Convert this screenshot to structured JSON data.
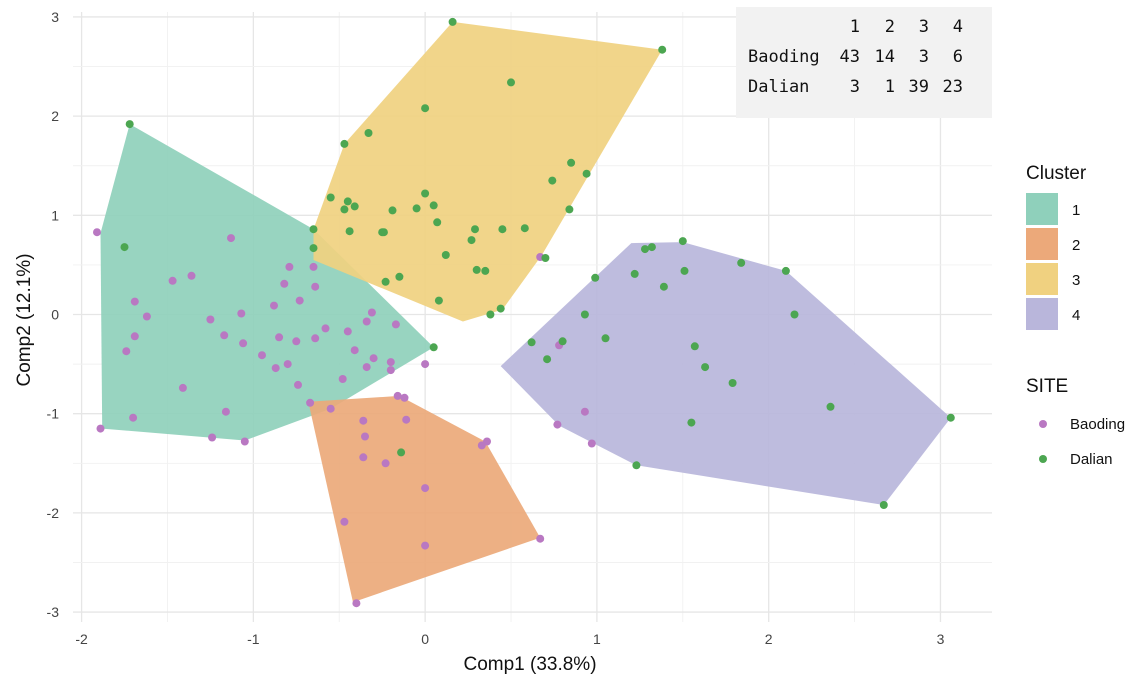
{
  "chart_data": {
    "type": "scatter",
    "xlabel": "Comp1 (33.8%)",
    "ylabel": "Comp2 (12.1%)",
    "xlim": [
      -2.05,
      3.3
    ],
    "ylim": [
      -3.1,
      3.05
    ],
    "x_ticks": [
      -2,
      -1,
      0,
      1,
      2,
      3
    ],
    "y_ticks": [
      -3,
      -2,
      -1,
      0,
      1,
      2,
      3
    ],
    "grid": true,
    "legend_position": "right",
    "cluster_legend": {
      "title": "Cluster",
      "entries": [
        {
          "label": "1",
          "color": "#8fd0bb"
        },
        {
          "label": "2",
          "color": "#eca97a"
        },
        {
          "label": "3",
          "color": "#f0d180"
        },
        {
          "label": "4",
          "color": "#b9b6db"
        }
      ]
    },
    "site_legend": {
      "title": "SITE",
      "entries": [
        {
          "label": "Baoding",
          "color": "#b978c2"
        },
        {
          "label": "Dalian",
          "color": "#4ca651"
        }
      ]
    },
    "hulls": [
      {
        "cluster": "1",
        "points": [
          [
            -1.72,
            1.92
          ],
          [
            -1.89,
            0.82
          ],
          [
            -1.88,
            -1.15
          ],
          [
            -1.05,
            -1.27
          ],
          [
            -0.55,
            -0.95
          ],
          [
            0.05,
            -0.33
          ],
          [
            -0.65,
            0.86
          ]
        ]
      },
      {
        "cluster": "2",
        "points": [
          [
            -0.68,
            -0.88
          ],
          [
            -0.42,
            -2.9
          ],
          [
            0.67,
            -2.25
          ],
          [
            0.35,
            -1.28
          ],
          [
            -0.15,
            -0.82
          ]
        ]
      },
      {
        "cluster": "3",
        "points": [
          [
            -0.65,
            0.86
          ],
          [
            -0.47,
            1.72
          ],
          [
            0.16,
            2.95
          ],
          [
            1.38,
            2.67
          ],
          [
            0.68,
            0.6
          ],
          [
            0.45,
            0.05
          ],
          [
            0.22,
            -0.07
          ],
          [
            -0.65,
            0.55
          ]
        ]
      },
      {
        "cluster": "4",
        "points": [
          [
            0.44,
            -0.52
          ],
          [
            1.2,
            0.72
          ],
          [
            1.5,
            0.73
          ],
          [
            2.1,
            0.44
          ],
          [
            3.06,
            -1.04
          ],
          [
            2.67,
            -1.92
          ],
          [
            1.23,
            -1.52
          ],
          [
            0.78,
            -1.12
          ]
        ]
      }
    ],
    "series": [
      {
        "name": "Baoding",
        "points": [
          [
            -1.91,
            0.83
          ],
          [
            -1.89,
            -1.15
          ],
          [
            -1.69,
            0.13
          ],
          [
            -1.7,
            -1.04
          ],
          [
            -1.74,
            -0.37
          ],
          [
            -1.69,
            -0.22
          ],
          [
            -1.62,
            -0.02
          ],
          [
            -1.47,
            0.34
          ],
          [
            -1.41,
            -0.74
          ],
          [
            -1.36,
            0.39
          ],
          [
            -1.24,
            -1.24
          ],
          [
            -1.25,
            -0.05
          ],
          [
            -1.17,
            -0.21
          ],
          [
            -1.16,
            -0.98
          ],
          [
            -1.13,
            0.77
          ],
          [
            -1.07,
            0.01
          ],
          [
            -1.06,
            -0.29
          ],
          [
            -1.05,
            -1.28
          ],
          [
            -0.95,
            -0.41
          ],
          [
            -0.87,
            -0.54
          ],
          [
            -0.88,
            0.09
          ],
          [
            -0.85,
            -0.23
          ],
          [
            -0.8,
            -0.5
          ],
          [
            -0.82,
            0.31
          ],
          [
            -0.79,
            0.48
          ],
          [
            -0.74,
            -0.71
          ],
          [
            -0.75,
            -0.27
          ],
          [
            -0.73,
            0.14
          ],
          [
            -0.65,
            0.48
          ],
          [
            -0.67,
            -0.89
          ],
          [
            -0.64,
            0.28
          ],
          [
            -0.64,
            -0.24
          ],
          [
            -0.58,
            -0.14
          ],
          [
            -0.55,
            -0.95
          ],
          [
            -0.48,
            -0.65
          ],
          [
            -0.45,
            -0.17
          ],
          [
            -0.41,
            -0.36
          ],
          [
            -0.34,
            -0.07
          ],
          [
            -0.34,
            -0.53
          ],
          [
            -0.3,
            -0.44
          ],
          [
            -0.31,
            0.02
          ],
          [
            -0.2,
            -0.48
          ],
          [
            -0.2,
            -0.56
          ],
          [
            -0.17,
            -0.1
          ],
          [
            -0.16,
            -0.82
          ],
          [
            -0.12,
            -0.84
          ],
          [
            -0.11,
            -1.06
          ],
          [
            0.0,
            -0.5
          ],
          [
            -0.35,
            -1.23
          ],
          [
            -0.36,
            -1.07
          ],
          [
            -0.36,
            -1.44
          ],
          [
            -0.47,
            -2.09
          ],
          [
            -0.4,
            -2.91
          ],
          [
            -0.23,
            -1.5
          ],
          [
            0.0,
            -1.75
          ],
          [
            0.0,
            -2.33
          ],
          [
            0.33,
            -1.32
          ],
          [
            0.36,
            -1.28
          ],
          [
            0.67,
            -2.26
          ],
          [
            0.67,
            0.58
          ],
          [
            0.78,
            -0.31
          ],
          [
            0.77,
            -1.11
          ],
          [
            0.93,
            -0.98
          ],
          [
            0.97,
            -1.3
          ]
        ]
      },
      {
        "name": "Dalian",
        "points": [
          [
            -1.72,
            1.92
          ],
          [
            -1.75,
            0.68
          ],
          [
            -0.65,
            0.86
          ],
          [
            -0.65,
            0.67
          ],
          [
            -0.47,
            1.72
          ],
          [
            -0.55,
            1.18
          ],
          [
            -0.47,
            1.06
          ],
          [
            -0.45,
            1.14
          ],
          [
            -0.44,
            0.84
          ],
          [
            -0.41,
            1.09
          ],
          [
            -0.33,
            1.83
          ],
          [
            -0.25,
            0.83
          ],
          [
            -0.24,
            0.83
          ],
          [
            -0.19,
            1.05
          ],
          [
            -0.23,
            0.33
          ],
          [
            -0.15,
            0.38
          ],
          [
            -0.05,
            1.07
          ],
          [
            0.0,
            2.08
          ],
          [
            0.0,
            1.22
          ],
          [
            0.05,
            1.1
          ],
          [
            0.07,
            0.93
          ],
          [
            0.08,
            0.14
          ],
          [
            0.12,
            0.6
          ],
          [
            0.16,
            2.95
          ],
          [
            0.27,
            0.75
          ],
          [
            0.29,
            0.86
          ],
          [
            0.3,
            0.45
          ],
          [
            0.35,
            0.44
          ],
          [
            0.38,
            0.0
          ],
          [
            0.44,
            0.06
          ],
          [
            0.45,
            0.86
          ],
          [
            0.5,
            2.34
          ],
          [
            0.58,
            0.87
          ],
          [
            0.7,
            0.57
          ],
          [
            0.74,
            1.35
          ],
          [
            0.84,
            1.06
          ],
          [
            0.85,
            1.53
          ],
          [
            0.94,
            1.42
          ],
          [
            1.38,
            2.67
          ],
          [
            0.05,
            -0.33
          ],
          [
            -0.14,
            -1.39
          ],
          [
            0.62,
            -0.28
          ],
          [
            0.71,
            -0.45
          ],
          [
            0.8,
            -0.27
          ],
          [
            0.93,
            0.0
          ],
          [
            0.99,
            0.37
          ],
          [
            1.05,
            -0.24
          ],
          [
            1.22,
            0.41
          ],
          [
            1.28,
            0.66
          ],
          [
            1.32,
            0.68
          ],
          [
            1.39,
            0.28
          ],
          [
            1.5,
            0.74
          ],
          [
            1.51,
            0.44
          ],
          [
            1.55,
            -1.09
          ],
          [
            1.57,
            -0.32
          ],
          [
            1.63,
            -0.53
          ],
          [
            1.79,
            -0.69
          ],
          [
            1.84,
            0.52
          ],
          [
            2.1,
            0.44
          ],
          [
            2.15,
            0.0
          ],
          [
            2.36,
            -0.93
          ],
          [
            2.67,
            -1.92
          ],
          [
            3.06,
            -1.04
          ],
          [
            1.23,
            -1.52
          ]
        ]
      }
    ],
    "inset_table": {
      "header": [
        "",
        "1",
        "2",
        "3",
        "4"
      ],
      "rows": [
        [
          "Baoding",
          "43",
          "14",
          "3",
          "6"
        ],
        [
          "Dalian",
          "3",
          "1",
          "39",
          "23"
        ]
      ]
    }
  }
}
